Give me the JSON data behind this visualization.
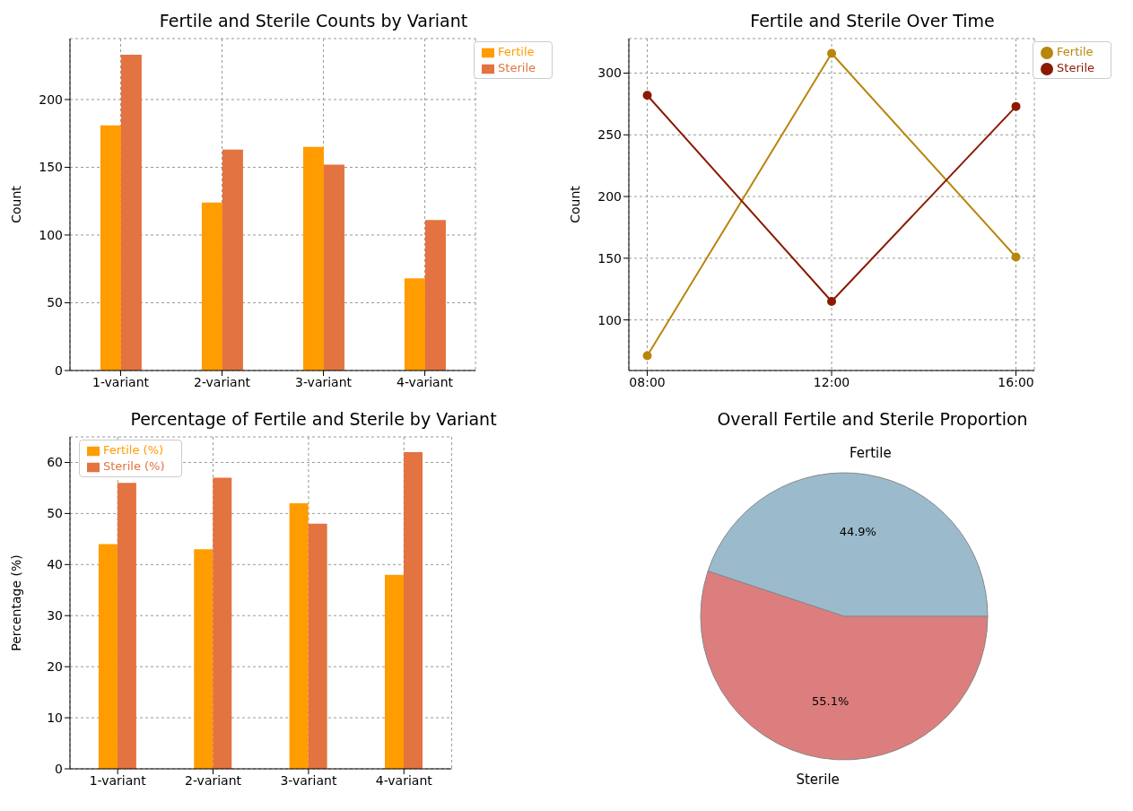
{
  "chart_data": [
    {
      "type": "bar",
      "title": "Fertile and Sterile Counts by Variant",
      "ylabel": "Count",
      "categories": [
        "1-variant",
        "2-variant",
        "3-variant",
        "4-variant"
      ],
      "series": [
        {
          "name": "Fertile",
          "color": "#ff9c00",
          "values": [
            181,
            124,
            165,
            68
          ]
        },
        {
          "name": "Sterile",
          "color": "#e37340",
          "values": [
            233,
            163,
            152,
            111
          ]
        }
      ],
      "ylim": [
        0,
        245
      ],
      "yticks": [
        0,
        50,
        100,
        150,
        200
      ],
      "grid": true,
      "legend": "top right"
    },
    {
      "type": "line",
      "title": "Fertile and Sterile Over Time",
      "ylabel": "Count",
      "x": [
        8,
        12,
        16
      ],
      "series": [
        {
          "name": "Fertile",
          "color": "#b8860b",
          "values": [
            71,
            316,
            151
          ]
        },
        {
          "name": "Sterile",
          "color": "#8b1a00",
          "values": [
            282,
            115,
            273
          ]
        }
      ],
      "xlim": [
        7.6,
        16.4
      ],
      "xticks": [
        {
          "value": 8,
          "label": "08:00"
        },
        {
          "value": 12,
          "label": "12:00"
        },
        {
          "value": 16,
          "label": "16:00"
        }
      ],
      "ylim": [
        59,
        328
      ],
      "yticks": [
        100,
        150,
        200,
        250,
        300
      ],
      "grid": true,
      "legend": "top right",
      "marker": "circle",
      "line_style": "solid"
    },
    {
      "type": "bar",
      "title": "Percentage of Fertile and Sterile by Variant",
      "ylabel": "Percentage (%)",
      "categories": [
        "1-variant",
        "2-variant",
        "3-variant",
        "4-variant"
      ],
      "series": [
        {
          "name": "Fertile (%)",
          "color": "#ff9c00",
          "values": [
            44,
            43,
            52,
            38
          ]
        },
        {
          "name": "Sterile (%)",
          "color": "#e37340",
          "values": [
            56,
            57,
            48,
            62
          ]
        }
      ],
      "ylim": [
        0,
        65
      ],
      "yticks": [
        0,
        10,
        20,
        30,
        40,
        50,
        60
      ],
      "grid": true,
      "legend": "top left"
    },
    {
      "type": "pie",
      "title": "Overall Fertile and Sterile Proportion",
      "categories": [
        "Fertile",
        "Sterile"
      ],
      "values": [
        44.9,
        55.1
      ],
      "colors": [
        "#9bbbcc",
        "#dc7e7e"
      ],
      "value_labels": [
        "44.9%",
        "55.1%"
      ]
    }
  ]
}
